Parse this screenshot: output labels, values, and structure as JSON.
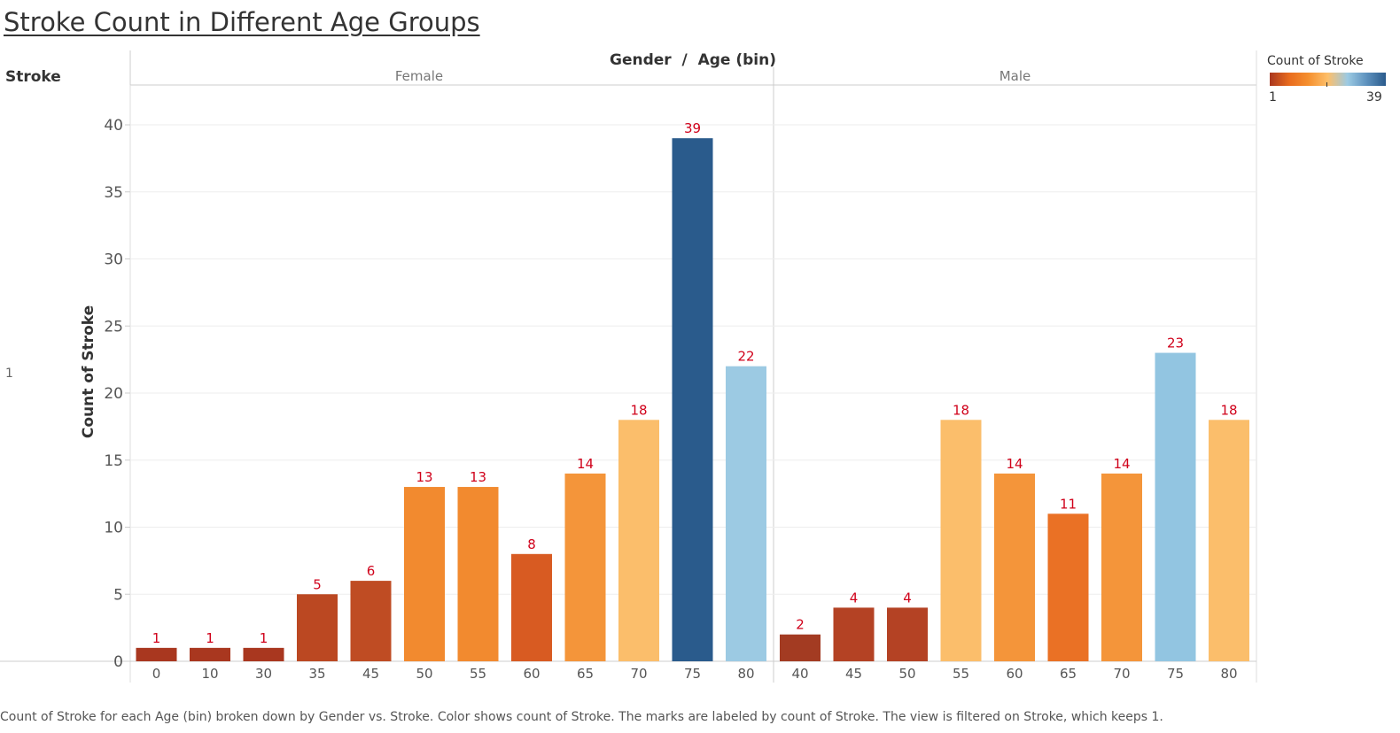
{
  "title": "Stroke Count in Different Age Groups",
  "caption": "Count of Stroke for each Age (bin) broken down by Gender vs. Stroke.  Color shows count of Stroke.  The marks are labeled by count of Stroke. The view is filtered on Stroke, which keeps 1.",
  "header": {
    "row_field": "Stroke",
    "col_field": "Gender  /  Age (bin)",
    "row_value": "1"
  },
  "legend": {
    "title": "Count of Stroke",
    "min": "1",
    "max": "39",
    "gradient": [
      "#a9371f",
      "#e96c1e",
      "#f58f2e",
      "#fdbf6a",
      "#9ccae3",
      "#5f93bf",
      "#2b5b8c"
    ]
  },
  "colors": {
    "label": "#d0021b",
    "axis_text": "#555555",
    "grid": "#eeeeee"
  },
  "chart_data": {
    "type": "bar",
    "title": "Stroke Count in Different Age Groups",
    "ylabel": "Count of Stroke",
    "ylim": [
      0,
      42
    ],
    "yticks": [
      0,
      5,
      10,
      15,
      20,
      25,
      30,
      35,
      40
    ],
    "grid": true,
    "legend_position": "top-right",
    "panels": [
      {
        "name": "Female",
        "categories": [
          "0",
          "10",
          "30",
          "35",
          "45",
          "50",
          "55",
          "60",
          "65",
          "70",
          "75",
          "80"
        ],
        "values": [
          1,
          1,
          1,
          5,
          6,
          13,
          13,
          8,
          14,
          18,
          39,
          22
        ],
        "colors": [
          "#a9371f",
          "#a9371f",
          "#a9371f",
          "#bb4822",
          "#bf4c23",
          "#f28a2f",
          "#f28a2f",
          "#d85b22",
          "#f4953a",
          "#fbbe6b",
          "#2a5b8c",
          "#9ccae3"
        ]
      },
      {
        "name": "Male",
        "categories": [
          "40",
          "45",
          "50",
          "55",
          "60",
          "65",
          "70",
          "75",
          "80"
        ],
        "values": [
          2,
          4,
          4,
          18,
          14,
          11,
          14,
          23,
          18
        ],
        "colors": [
          "#a33b22",
          "#b44224",
          "#b44224",
          "#fbbe6b",
          "#f4953a",
          "#ea7125",
          "#f4953a",
          "#92c5e1",
          "#fbbe6b"
        ]
      }
    ]
  }
}
